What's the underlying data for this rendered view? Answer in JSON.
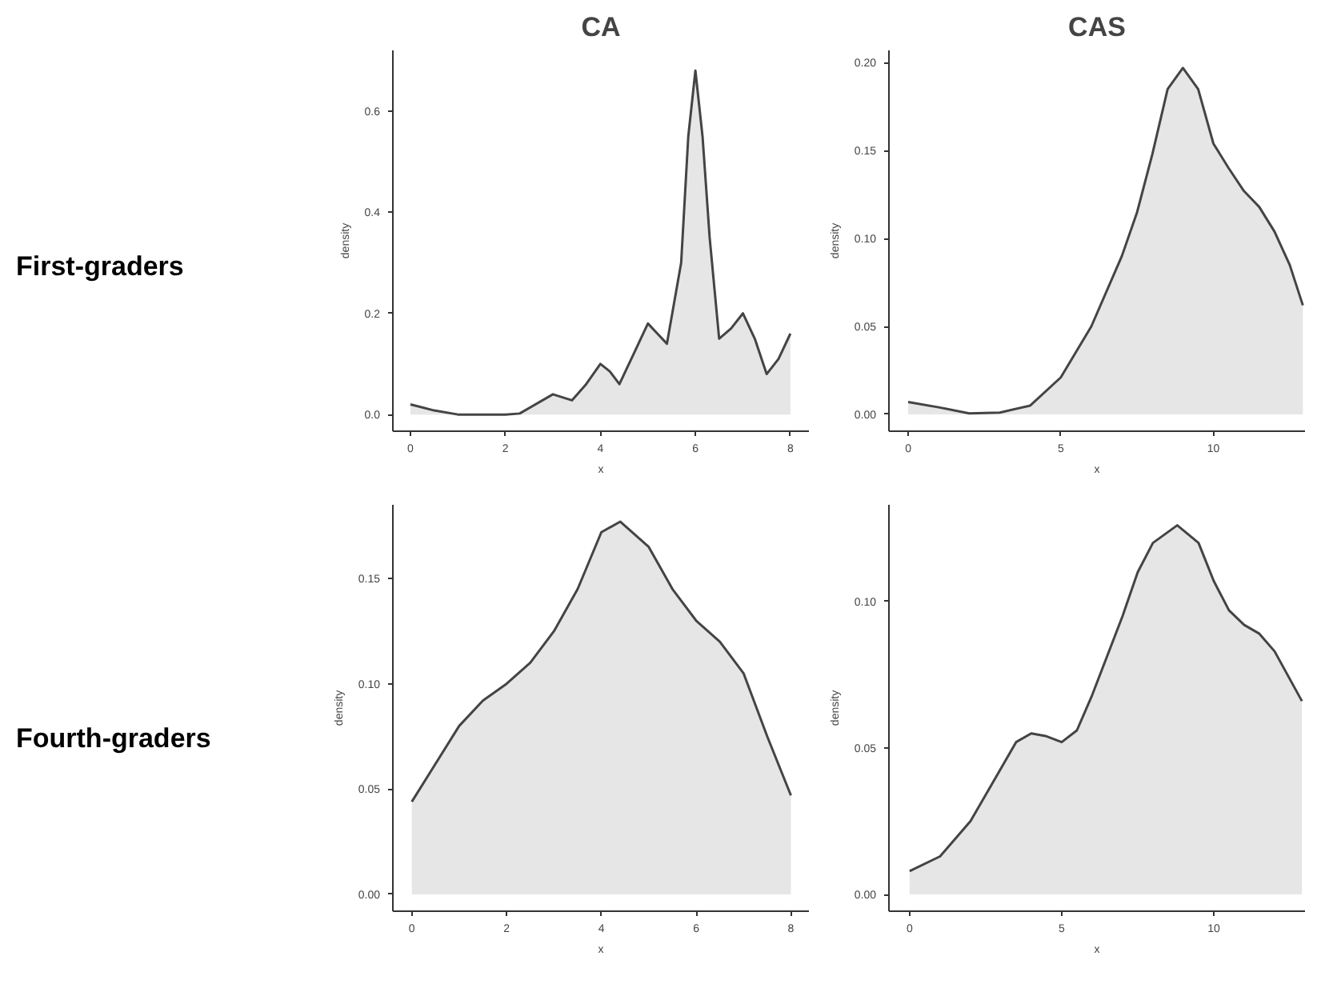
{
  "chart_data": [
    {
      "type": "area",
      "title": "CA",
      "annotations": [
        "First-graders"
      ],
      "xlabel": "x",
      "ylabel": "density",
      "color": "#e6e6e6",
      "x": [
        0,
        0.5,
        1,
        2,
        2.3,
        3,
        3.4,
        3.7,
        4,
        4.2,
        4.4,
        4.7,
        5,
        5.2,
        5.4,
        5.7,
        5.85,
        6,
        6.15,
        6.3,
        6.5,
        6.75,
        7,
        7.25,
        7.5,
        7.75,
        8
      ],
      "values": [
        0.02,
        0.008,
        0,
        0,
        0.002,
        0.04,
        0.028,
        0.06,
        0.1,
        0.085,
        0.06,
        0.12,
        0.18,
        0.16,
        0.14,
        0.3,
        0.55,
        0.68,
        0.55,
        0.35,
        0.15,
        0.17,
        0.2,
        0.15,
        0.08,
        0.11,
        0.16
      ],
      "xlim": [
        -0.37,
        8.39
      ],
      "ylim": [
        -0.033,
        0.72
      ],
      "xticks": [
        0,
        2,
        4,
        6,
        8
      ],
      "yticks": [
        {
          "value": 0,
          "label": "0.0"
        },
        {
          "value": 0.2,
          "label": "0.2"
        },
        {
          "value": 0.4,
          "label": "0.4"
        },
        {
          "value": 0.6,
          "label": "0.6"
        }
      ]
    },
    {
      "type": "area",
      "title": "CAS",
      "xlabel": "x",
      "ylabel": "density",
      "color": "#e6e6e6",
      "x": [
        0,
        1,
        2,
        3,
        4,
        5,
        6,
        7,
        7.5,
        8,
        8.5,
        9,
        9.5,
        10,
        10.5,
        11,
        11.5,
        12,
        12.5,
        12.93
      ],
      "values": [
        0.007,
        0.004,
        0.0005,
        0.001,
        0.005,
        0.021,
        0.05,
        0.09,
        0.115,
        0.148,
        0.185,
        0.197,
        0.185,
        0.154,
        0.14,
        0.127,
        0.118,
        0.104,
        0.085,
        0.062
      ],
      "xlim": [
        -0.63,
        13
      ],
      "ylim": [
        -0.0096,
        0.207
      ],
      "xticks": [
        0,
        5,
        10
      ],
      "yticks": [
        {
          "value": 0,
          "label": "0.00"
        },
        {
          "value": 0.05,
          "label": "0.05"
        },
        {
          "value": 0.1,
          "label": "0.10"
        },
        {
          "value": 0.15,
          "label": "0.15"
        },
        {
          "value": 0.2,
          "label": "0.20"
        }
      ]
    },
    {
      "type": "area",
      "annotations": [
        "Fourth-graders"
      ],
      "xlabel": "x",
      "ylabel": "density",
      "color": "#e6e6e6",
      "x": [
        0,
        0.5,
        1,
        1.5,
        2,
        2.5,
        3,
        3.5,
        4,
        4.4,
        5,
        5.5,
        6,
        6.5,
        7,
        7.5,
        8
      ],
      "values": [
        0.044,
        0.062,
        0.08,
        0.092,
        0.1,
        0.11,
        0.125,
        0.145,
        0.172,
        0.177,
        0.165,
        0.145,
        0.13,
        0.12,
        0.105,
        0.075,
        0.047
      ],
      "xlim": [
        -0.4,
        8.38
      ],
      "ylim": [
        -0.008,
        0.185
      ],
      "xticks": [
        0,
        2,
        4,
        6,
        8
      ],
      "yticks": [
        {
          "value": 0,
          "label": "0.00"
        },
        {
          "value": 0.05,
          "label": "0.05"
        },
        {
          "value": 0.1,
          "label": "0.10"
        },
        {
          "value": 0.15,
          "label": "0.15"
        }
      ]
    },
    {
      "type": "area",
      "xlabel": "x",
      "ylabel": "density",
      "color": "#e6e6e6",
      "x": [
        0,
        1,
        2,
        3,
        3.5,
        4,
        4.5,
        5,
        5.5,
        6,
        7,
        7.5,
        8,
        8.8,
        9.5,
        10,
        10.5,
        11,
        11.5,
        12,
        12.9
      ],
      "values": [
        0.008,
        0.013,
        0.025,
        0.043,
        0.052,
        0.055,
        0.054,
        0.052,
        0.056,
        0.068,
        0.095,
        0.11,
        0.12,
        0.126,
        0.12,
        0.107,
        0.097,
        0.092,
        0.089,
        0.083,
        0.066
      ],
      "xlim": [
        -0.68,
        13
      ],
      "ylim": [
        -0.0057,
        0.133
      ],
      "xticks": [
        0,
        5,
        10
      ],
      "yticks": [
        {
          "value": 0,
          "label": "0.00"
        },
        {
          "value": 0.05,
          "label": "0.05"
        },
        {
          "value": 0.1,
          "label": "0.10"
        }
      ]
    }
  ]
}
